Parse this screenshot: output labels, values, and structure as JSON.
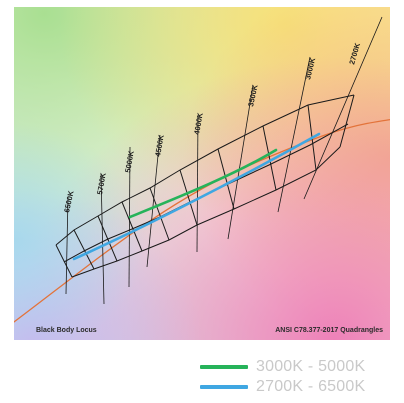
{
  "diagram": {
    "cct_labels": [
      "6500K",
      "5700K",
      "5000K",
      "4500K",
      "4000K",
      "3500K",
      "3000K",
      "2700K"
    ],
    "curve_label": "Black Body Locus",
    "standard_label": "ANSI C78.377-2017 Quadrangles"
  },
  "legend": [
    {
      "label": "3000K - 5000K",
      "color": "#26b35a"
    },
    {
      "label": "2700K - 6500K",
      "color": "#3fa7e2"
    }
  ],
  "colors": {
    "grid_lines": "#1a1a1a",
    "black_body_curve": "#e3733a"
  }
}
